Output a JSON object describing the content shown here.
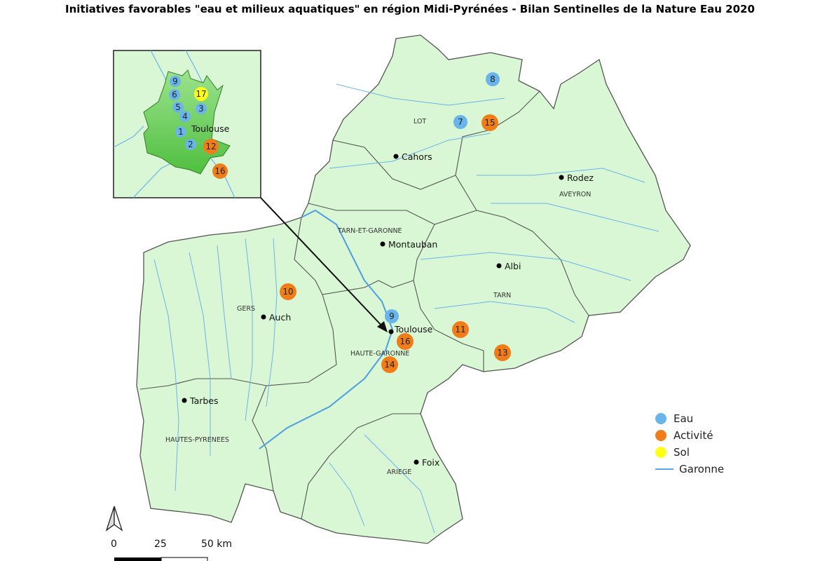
{
  "title": "Initiatives favorables \"eau et milieux aquatiques\" en région Midi-Pyrénées - Bilan Sentinelles de la Nature Eau 2020",
  "colors": {
    "land": "#d9f7d4",
    "boundary": "#555555",
    "river": "#6ab4ec",
    "eau": "#6ab4ec",
    "activite": "#f07d18",
    "sol": "#ffff1a",
    "toulouse_area": "#78d36a"
  },
  "departments": [
    {
      "name": "LOT"
    },
    {
      "name": "AVEYRON"
    },
    {
      "name": "TARN-ET-GARONNE"
    },
    {
      "name": "TARN"
    },
    {
      "name": "GERS"
    },
    {
      "name": "HAUTE-GARONNE"
    },
    {
      "name": "HAUTES-PYRENEES"
    },
    {
      "name": "ARIEGE"
    }
  ],
  "cities": [
    {
      "name": "Cahors"
    },
    {
      "name": "Rodez"
    },
    {
      "name": "Montauban"
    },
    {
      "name": "Albi"
    },
    {
      "name": "Auch"
    },
    {
      "name": "Toulouse"
    },
    {
      "name": "Tarbes"
    },
    {
      "name": "Foix"
    }
  ],
  "markers": [
    {
      "label": "8",
      "category": "eau"
    },
    {
      "label": "7",
      "category": "eau"
    },
    {
      "label": "15",
      "category": "activite"
    },
    {
      "label": "10",
      "category": "activite"
    },
    {
      "label": "9",
      "category": "eau"
    },
    {
      "label": "11",
      "category": "activite"
    },
    {
      "label": "16",
      "category": "activite"
    },
    {
      "label": "14",
      "category": "activite"
    },
    {
      "label": "13",
      "category": "activite"
    }
  ],
  "inset": {
    "city": "Toulouse",
    "markers": [
      {
        "label": "9",
        "category": "eau"
      },
      {
        "label": "6",
        "category": "eau"
      },
      {
        "label": "17",
        "category": "sol"
      },
      {
        "label": "5",
        "category": "eau"
      },
      {
        "label": "3",
        "category": "eau"
      },
      {
        "label": "4",
        "category": "eau"
      },
      {
        "label": "1",
        "category": "eau"
      },
      {
        "label": "2",
        "category": "eau"
      },
      {
        "label": "12",
        "category": "activite"
      },
      {
        "label": "16",
        "category": "activite"
      }
    ]
  },
  "legend": [
    {
      "label": "Eau",
      "category": "eau"
    },
    {
      "label": "Activité",
      "category": "activite"
    },
    {
      "label": "Sol",
      "category": "sol"
    },
    {
      "label": "Garonne",
      "category": "river"
    }
  ],
  "scale": {
    "ticks": [
      "0",
      "25",
      "50 km"
    ]
  },
  "north_arrow": "north-arrow-icon"
}
